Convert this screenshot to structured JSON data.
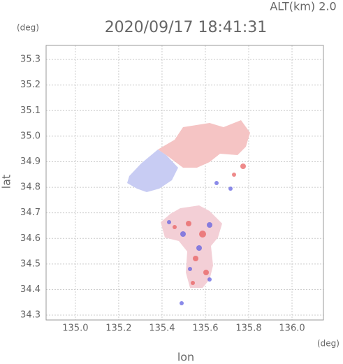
{
  "chart_data": {
    "type": "map",
    "title": "2020/09/17 18:41:31",
    "subtitle": "ALT(km) 2.0",
    "x_label": "lon",
    "x_unit": "(deg)",
    "y_label": "lat",
    "y_unit": "(deg)",
    "xlim": [
      134.865,
      136.145
    ],
    "ylim": [
      34.281,
      35.355
    ],
    "xticks": [
      {
        "value": 135.0,
        "label": "135.0"
      },
      135.2,
      135.4,
      135.6,
      135.8,
      {
        "value": 136.0,
        "label": "136.0"
      }
    ],
    "yticks": [
      34.3,
      34.4,
      34.5,
      34.6,
      34.7,
      34.8,
      34.9,
      {
        "value": 35.0,
        "label": "35.0"
      },
      35.1,
      35.2,
      35.3
    ],
    "grid": true
  }
}
